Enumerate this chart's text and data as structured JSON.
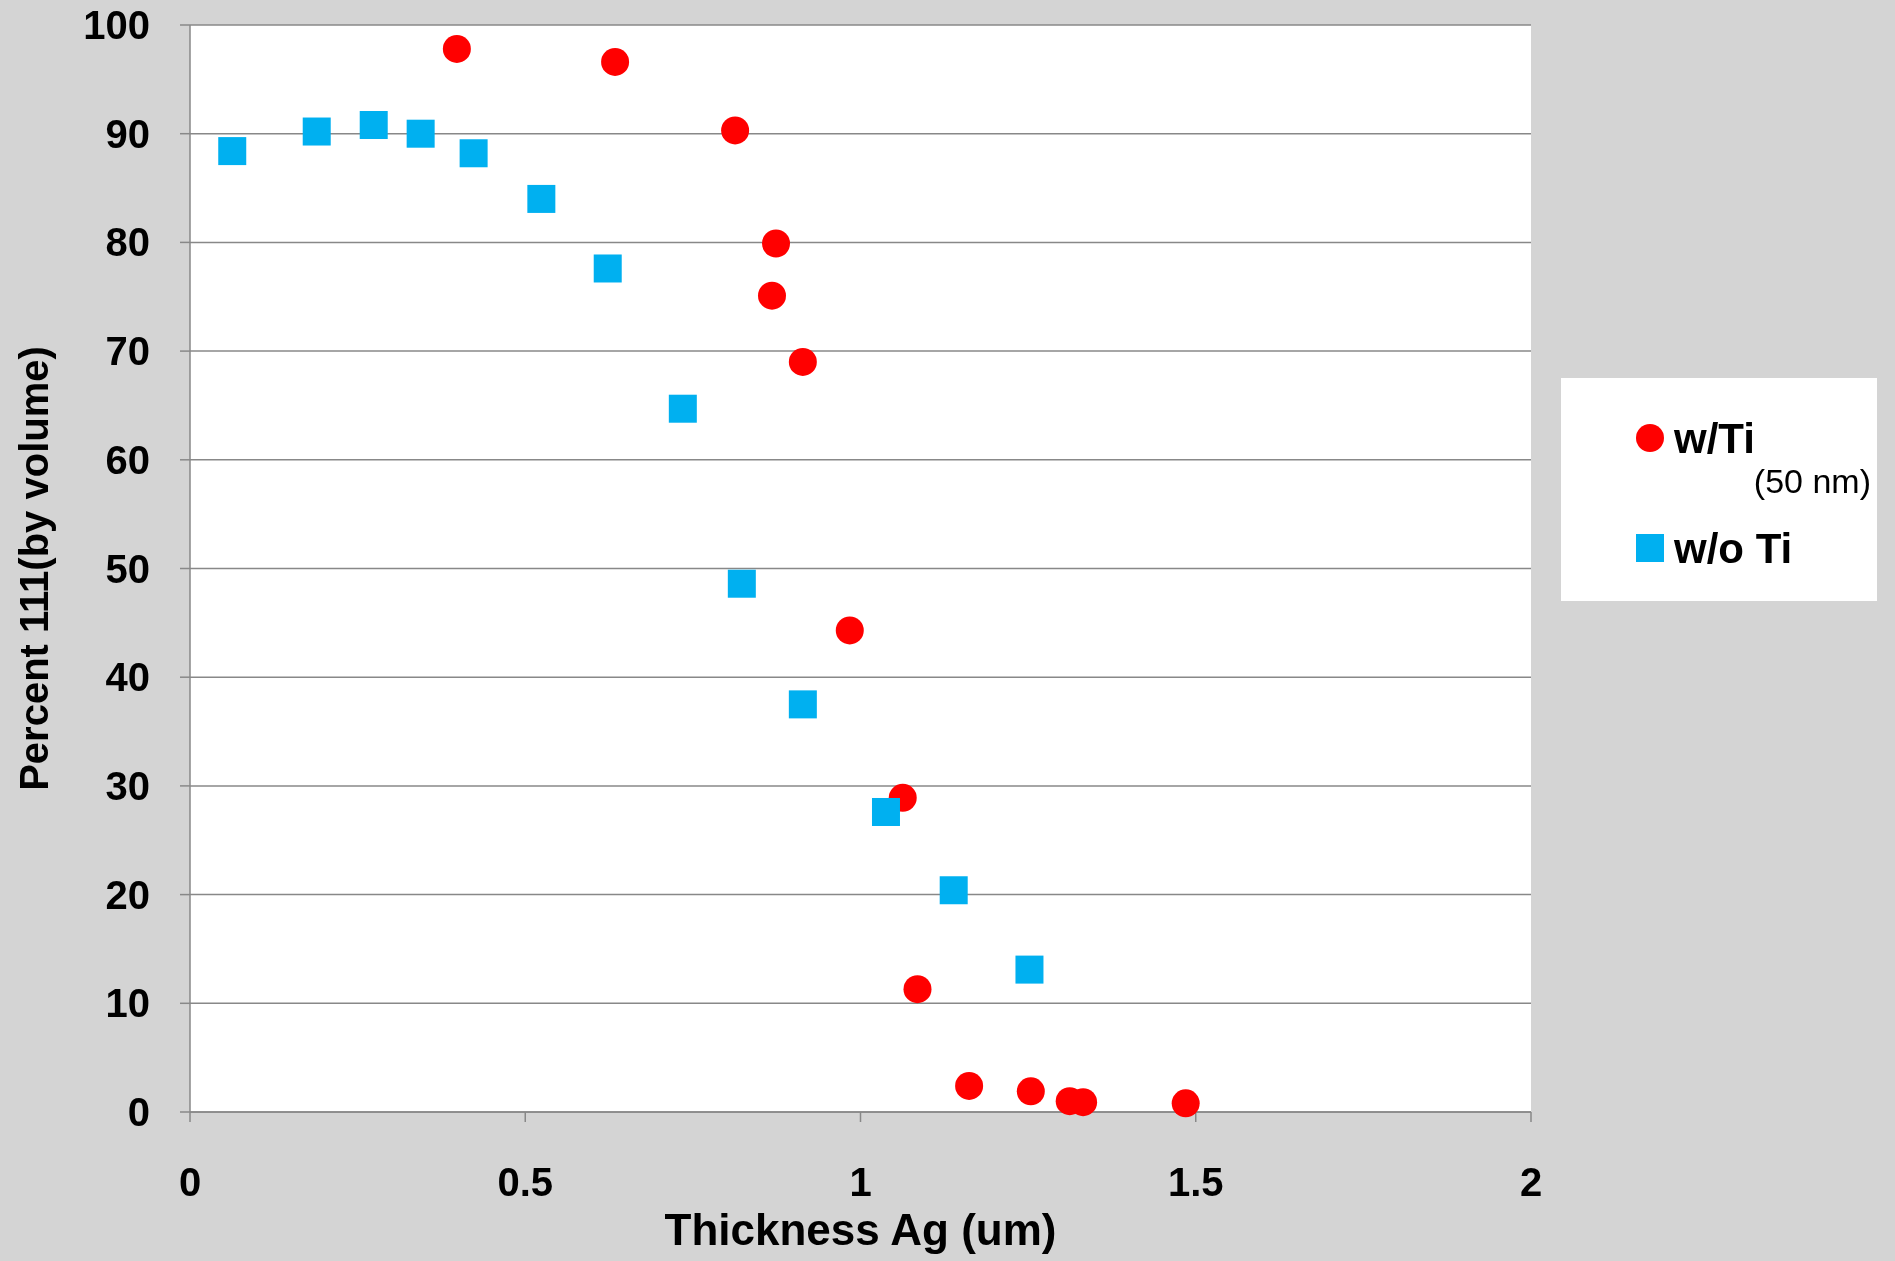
{
  "chart_data": {
    "type": "scatter",
    "xlabel": "Thickness Ag (um)",
    "ylabel": "Percent 111(by volume)",
    "xlim": [
      0,
      2
    ],
    "xticks": [
      0,
      0.5,
      1,
      1.5,
      2
    ],
    "ylim": [
      0,
      100
    ],
    "yticks": [
      0,
      10,
      20,
      30,
      40,
      50,
      60,
      70,
      80,
      90,
      100
    ],
    "grid": "y",
    "legend": "right",
    "series": [
      {
        "name": "w/Ti (50 nm)",
        "color": "#ff0000",
        "marker": "circle",
        "x": [
          0.398,
          0.634,
          0.813,
          0.874,
          0.868,
          0.914,
          0.984,
          1.063,
          1.085,
          1.162,
          1.254,
          1.312,
          1.332,
          1.485
        ],
        "values": [
          97.8,
          96.6,
          90.3,
          79.9,
          75.1,
          69.0,
          44.3,
          28.9,
          11.3,
          2.4,
          1.9,
          1.0,
          0.9,
          0.8
        ]
      },
      {
        "name": "w/o Ti",
        "color": "#00b0f0",
        "marker": "square",
        "x": [
          0.063,
          0.189,
          0.274,
          0.344,
          0.423,
          0.524,
          0.623,
          0.735,
          0.823,
          0.914,
          1.038,
          1.139,
          1.252
        ],
        "values": [
          88.4,
          90.2,
          90.8,
          90.0,
          88.2,
          84.0,
          77.6,
          64.7,
          48.6,
          37.5,
          27.6,
          20.4,
          13.1
        ]
      }
    ]
  }
}
